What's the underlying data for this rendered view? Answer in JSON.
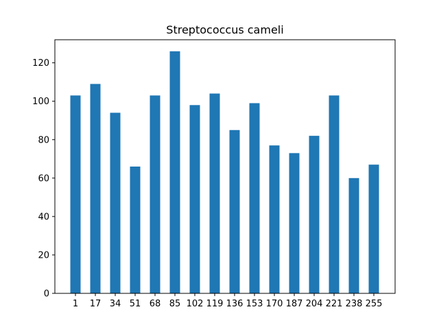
{
  "chart_data": {
    "type": "bar",
    "title": "Streptococcus cameli",
    "xlabel": "",
    "ylabel": "",
    "categories": [
      "1",
      "17",
      "34",
      "51",
      "68",
      "85",
      "102",
      "119",
      "136",
      "153",
      "170",
      "187",
      "204",
      "221",
      "238",
      "255"
    ],
    "values": [
      103,
      109,
      94,
      66,
      103,
      126,
      98,
      104,
      85,
      99,
      77,
      73,
      82,
      103,
      60,
      67
    ],
    "ylim": [
      0,
      132
    ],
    "yticks": [
      0,
      20,
      40,
      60,
      80,
      100,
      120
    ],
    "grid": false,
    "legend": "none",
    "bar_color": "#1f77b4"
  }
}
